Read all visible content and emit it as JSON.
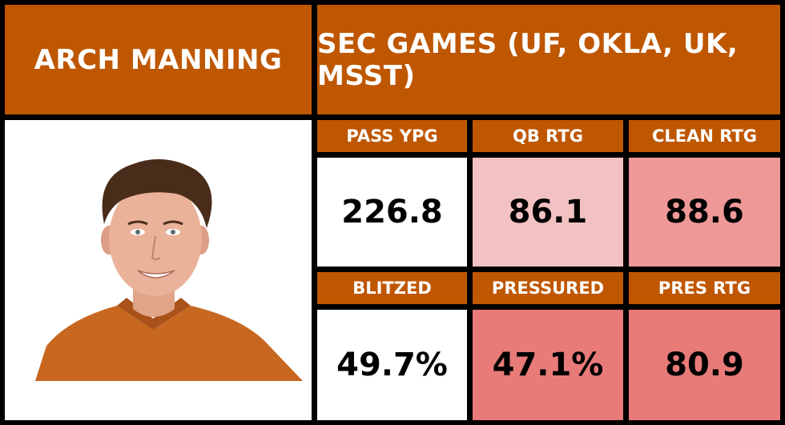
{
  "player": {
    "name": "ARCH MANNING"
  },
  "context": {
    "title": "SEC GAMES (UF, OKLA, UK, MSST)"
  },
  "colors": {
    "header": "#bf5700",
    "neutral": "#ffffff",
    "light_red": "#f2c2c2",
    "mid_red": "#ef9898",
    "strong_red": "#e87a78"
  },
  "stats": [
    {
      "label": "PASS YPG",
      "value": "226.8",
      "shade": "#ffffff"
    },
    {
      "label": "QB RTG",
      "value": "86.1",
      "shade": "#f2c2c2"
    },
    {
      "label": "CLEAN RTG",
      "value": "88.6",
      "shade": "#ef9898"
    },
    {
      "label": "BLITZED",
      "value": "49.7%",
      "shade": "#ffffff"
    },
    {
      "label": "PRESSURED",
      "value": "47.1%",
      "shade": "#e87a78"
    },
    {
      "label": "PRES RTG",
      "value": "80.9",
      "shade": "#e87a78"
    }
  ]
}
